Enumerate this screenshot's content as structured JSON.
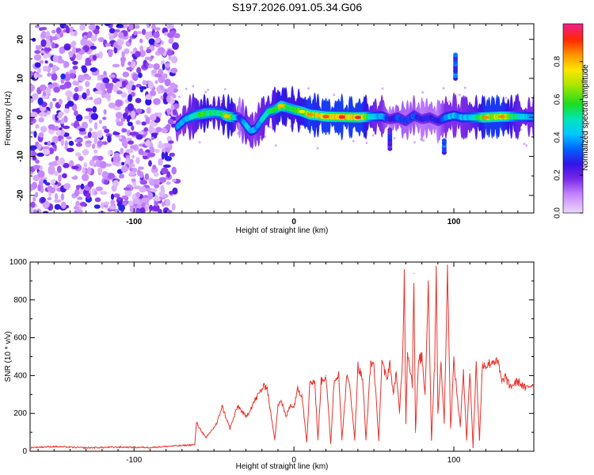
{
  "title": "S197.2026.091.05.34.G06",
  "chart_data": [
    {
      "type": "heatmap",
      "title": "S197.2026.091.05.34.G06",
      "xlabel": "Height of straight line (km)",
      "ylabel": "Frequency (Hz)",
      "xlim": [
        -165,
        150
      ],
      "ylim": [
        -24.5,
        24
      ],
      "xticks": [
        "-100",
        "0",
        "100"
      ],
      "xtick_values": [
        -100,
        0,
        100
      ],
      "yticks": [
        "-20",
        "-10",
        "0",
        "10",
        "20"
      ],
      "ytick_values": [
        -20,
        -10,
        0,
        10,
        20
      ],
      "colorbar": {
        "label": "Normalized spectral amplitude",
        "range": [
          0,
          1
        ],
        "ticks": [
          "0.0",
          "0.2",
          "0.4",
          "0.6",
          "0.8"
        ],
        "tick_values": [
          0,
          0.2,
          0.4,
          0.6,
          0.8
        ]
      },
      "noise_region_x": [
        -165,
        -73
      ],
      "ridge": {
        "x": [
          -77,
          -72,
          -68,
          -62,
          -56,
          -50,
          -46,
          -42,
          -38,
          -34,
          -30,
          -27,
          -24,
          -20,
          -16,
          -12,
          -8,
          -4,
          0,
          5,
          10,
          15,
          20,
          30,
          40,
          50,
          55,
          60,
          65,
          70,
          75,
          80,
          85,
          90,
          95,
          100,
          105,
          110,
          115,
          120,
          130,
          140,
          148
        ],
        "freq": [
          -4,
          -2,
          -0.5,
          0.5,
          1,
          1.2,
          1,
          0.3,
          0,
          0,
          -2,
          -3.5,
          -3,
          -0.5,
          1.5,
          2,
          3,
          2.5,
          2,
          1.5,
          0.7,
          0.5,
          0.2,
          0.1,
          0,
          0.2,
          0.3,
          -0.5,
          0,
          -1,
          0.5,
          -0.5,
          0,
          -1,
          0,
          0.5,
          0,
          0,
          0,
          0,
          0.2,
          0.2,
          0.1
        ],
        "amplitude": [
          0.35,
          0.45,
          0.5,
          0.6,
          0.72,
          0.65,
          0.6,
          0.8,
          0.7,
          0.3,
          0.55,
          0.5,
          0.45,
          0.55,
          0.6,
          0.65,
          0.8,
          0.7,
          0.7,
          0.75,
          0.85,
          0.8,
          0.9,
          0.95,
          0.95,
          0.55,
          0.5,
          0.3,
          0.4,
          0.35,
          0.4,
          0.3,
          0.35,
          0.3,
          0.5,
          0.5,
          0.5,
          0.55,
          0.65,
          0.85,
          0.85,
          0.6,
          0.5
        ]
      },
      "features": [
        {
          "x": 101,
          "freq_range": [
            10,
            16
          ],
          "amplitude": 0.3
        },
        {
          "x": 60,
          "freq_range": [
            -8,
            -3
          ],
          "amplitude": 0.25
        },
        {
          "x": 94,
          "freq_range": [
            -9,
            -6
          ],
          "amplitude": 0.3
        }
      ]
    },
    {
      "type": "line",
      "xlabel": "Height of straight line (km)",
      "ylabel": "SNR (10 * v/v)",
      "xlim": [
        -165,
        150
      ],
      "ylim": [
        0,
        1000
      ],
      "xticks": [
        "-100",
        "0",
        "100"
      ],
      "xtick_values": [
        -100,
        0,
        100
      ],
      "yticks": [
        "0",
        "200",
        "400",
        "600",
        "800",
        "1000"
      ],
      "ytick_values": [
        0,
        200,
        400,
        600,
        800,
        1000
      ],
      "color": "#e8322a",
      "series": [
        {
          "name": "SNR",
          "x": [
            -165,
            -150,
            -130,
            -110,
            -90,
            -75,
            -70,
            -62,
            -61,
            -55,
            -48,
            -45,
            -40,
            -35,
            -30,
            -25,
            -20,
            -17,
            -15,
            -12,
            -10,
            -8,
            -5,
            -2,
            0,
            2,
            5,
            8,
            10,
            13,
            15,
            17,
            20,
            23,
            25,
            28,
            30,
            33,
            35,
            38,
            40,
            43,
            45,
            48,
            50,
            53,
            55,
            58,
            60,
            62,
            64,
            66,
            68,
            69,
            70,
            71,
            72,
            74,
            75,
            76,
            78,
            80,
            82,
            84,
            86,
            88,
            89,
            90,
            92,
            94,
            96,
            98,
            100,
            102,
            104,
            106,
            108,
            110,
            112,
            114,
            116,
            118,
            120,
            125,
            128,
            130,
            132,
            135,
            140,
            145,
            150
          ],
          "y": [
            20,
            25,
            18,
            22,
            20,
            28,
            30,
            35,
            150,
            70,
            150,
            240,
            120,
            240,
            180,
            260,
            330,
            350,
            230,
            60,
            250,
            270,
            180,
            250,
            230,
            330,
            300,
            50,
            370,
            370,
            60,
            370,
            400,
            40,
            360,
            420,
            60,
            390,
            350,
            60,
            450,
            380,
            60,
            470,
            460,
            60,
            470,
            380,
            470,
            300,
            420,
            200,
            500,
            960,
            150,
            520,
            480,
            350,
            940,
            100,
            480,
            500,
            300,
            900,
            60,
            460,
            1000,
            200,
            460,
            150,
            980,
            120,
            480,
            300,
            130,
            430,
            60,
            430,
            20,
            470,
            60,
            470,
            450,
            480,
            460,
            360,
            400,
            340,
            370,
            330,
            360
          ]
        }
      ]
    }
  ]
}
